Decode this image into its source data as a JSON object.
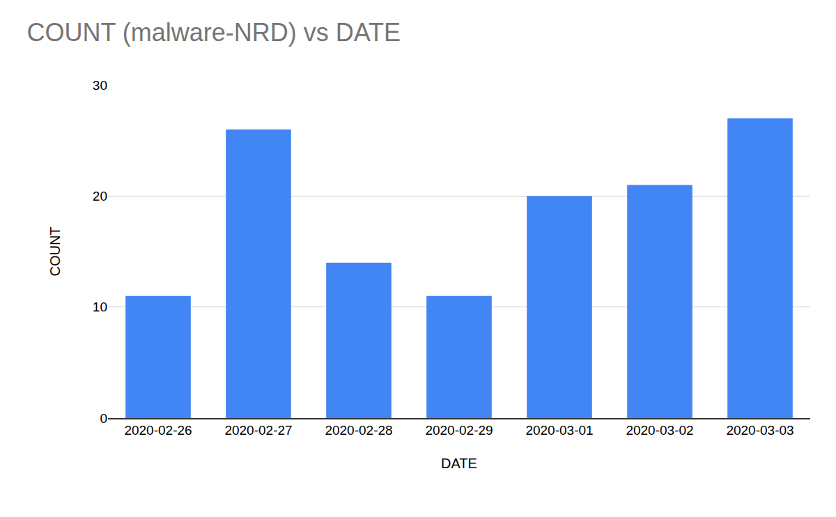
{
  "chart_data": {
    "type": "bar",
    "title": "COUNT (malware-NRD) vs DATE",
    "x_label": "DATE",
    "y_label": "COUNT",
    "categories": [
      "2020-02-26",
      "2020-02-27",
      "2020-02-28",
      "2020-02-29",
      "2020-03-01",
      "2020-03-02",
      "2020-03-03"
    ],
    "values": [
      11,
      26,
      14,
      11,
      20,
      21,
      27
    ],
    "color": "#4285f4",
    "ylim": [
      0,
      30
    ],
    "yticks": [
      0,
      10,
      20,
      30
    ],
    "grid": true
  }
}
